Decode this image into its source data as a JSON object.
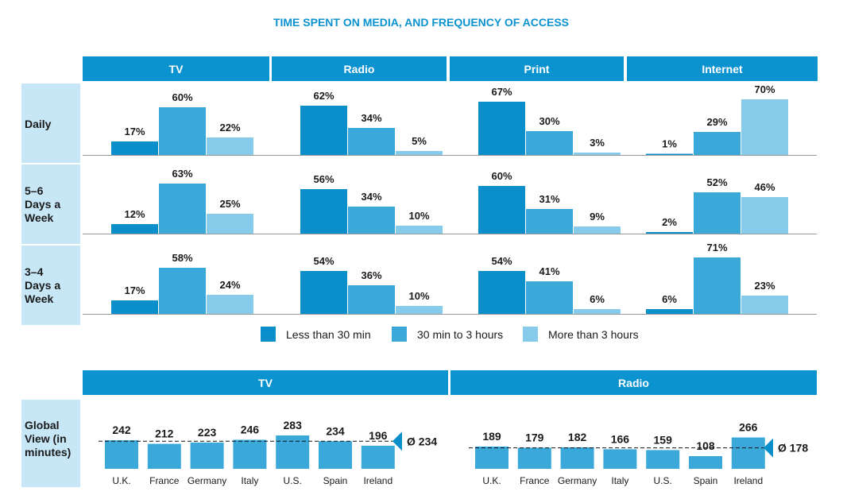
{
  "title": "TIME SPENT ON MEDIA, AND FREQUENCY OF ACCESS",
  "colors": {
    "header": "#0b93cf",
    "row_label_bg": "#c7e7f6",
    "less_30": "#0a8fca",
    "mid": "#3aa9da",
    "more_3": "#86cbe9",
    "average_marker": "#0a8fca",
    "text": "#1a1a1a"
  },
  "chart_data": [
    {
      "type": "bar",
      "panels": [
        "TV",
        "Radio",
        "Print",
        "Internet"
      ],
      "rows": [
        "Daily",
        "5–6 Days a Week",
        "3–4 Days a Week"
      ],
      "row_lines": [
        [
          "Daily"
        ],
        [
          "5–6",
          "Days a",
          "Week"
        ],
        [
          "3–4",
          "Days a",
          "Week"
        ]
      ],
      "legend": [
        "Less than 30 min",
        "30 min to 3 hours",
        "More than 3 hours"
      ],
      "legend_position": "bottom",
      "unit": "%",
      "ylim": [
        0,
        100
      ],
      "values": [
        [
          [
            17,
            60,
            22
          ],
          [
            62,
            34,
            5
          ],
          [
            67,
            30,
            3
          ],
          [
            1,
            29,
            70
          ]
        ],
        [
          [
            12,
            63,
            25
          ],
          [
            56,
            34,
            10
          ],
          [
            60,
            31,
            9
          ],
          [
            2,
            52,
            46
          ]
        ],
        [
          [
            17,
            58,
            24
          ],
          [
            54,
            36,
            10
          ],
          [
            54,
            41,
            6
          ],
          [
            6,
            71,
            23
          ]
        ]
      ]
    },
    {
      "type": "bar",
      "row_label": "Global View (in minutes)",
      "row_label_lines": [
        "Global",
        "View (in",
        "minutes)"
      ],
      "average_symbol": "Ø",
      "ylim": [
        0,
        300
      ],
      "panels": [
        {
          "title": "TV",
          "categories": [
            "U.K.",
            "France",
            "Germany",
            "Italy",
            "U.S.",
            "Spain",
            "Ireland"
          ],
          "values": [
            242,
            212,
            223,
            246,
            283,
            234,
            196
          ],
          "average": 234
        },
        {
          "title": "Radio",
          "categories": [
            "U.K.",
            "France",
            "Germany",
            "Italy",
            "U.S.",
            "Spain",
            "Ireland"
          ],
          "values": [
            189,
            179,
            182,
            166,
            159,
            108,
            266
          ],
          "average": 178
        }
      ]
    }
  ]
}
